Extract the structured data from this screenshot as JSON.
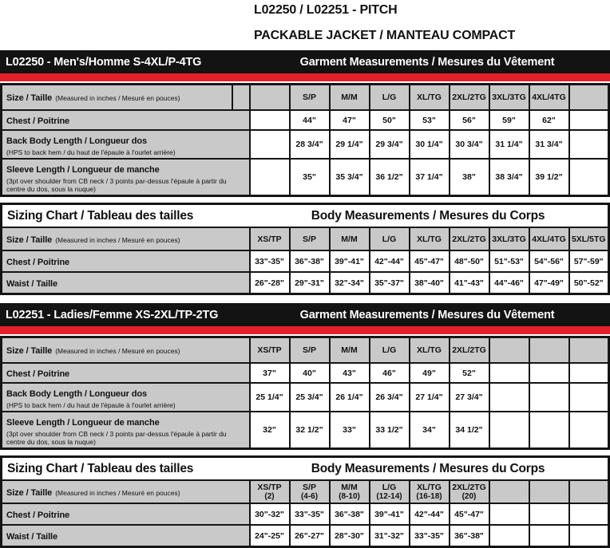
{
  "header": {
    "line1": "L02250 / L02251 - PITCH",
    "line2": "PACKABLE JACKET / MANTEAU COMPACT"
  },
  "colors": {
    "accent_red": "#e4212a",
    "banner_black": "#131313",
    "cell_gray": "#c9c9c9"
  },
  "size_row_label": "Size / Taille",
  "size_row_note": "(Measured in inches / Mesuré en pouces)",
  "sections": [
    {
      "id": "mens",
      "banner": {
        "left": "L02250 - Men's/Homme S-4XL/P-4TG",
        "right": "Garment Measurements / Mesures du Vêtement"
      },
      "garment": {
        "split_label_column": true,
        "sizes": [
          "",
          "S/P",
          "M/M",
          "L/G",
          "XL/TG",
          "2XL/2TG",
          "3XL/3TG",
          "4XL/4TG",
          ""
        ],
        "rows": [
          {
            "label": "Chest / Poitrine",
            "note": "",
            "values": [
              "",
              "44\"",
              "47\"",
              "50\"",
              "53\"",
              "56\"",
              "59\"",
              "62\"",
              ""
            ]
          },
          {
            "label": "Back Body Length / Longueur dos",
            "note": "(HPS to back hem / du haut de l'épaule à l'ourlet arrière)",
            "values": [
              "",
              "28 3/4\"",
              "29 1/4\"",
              "29 3/4\"",
              "30 1/4\"",
              "30 3/4\"",
              "31 1/4\"",
              "31 3/4\"",
              ""
            ]
          },
          {
            "label": "Sleeve Length / Longueur de manche",
            "note": "(3pt over shoulder from CB neck / 3 points par-dessus l'épaule à partir du centre du dos, sous la nuque)",
            "values": [
              "",
              "35\"",
              "35 3/4\"",
              "36 1/2\"",
              "37 1/4\"",
              "38\"",
              "38 3/4\"",
              "39 1/2\"",
              ""
            ]
          }
        ]
      },
      "body": {
        "title_left": "Sizing Chart / Tableau des tailles",
        "title_right": "Body Measurements / Mesures du Corps",
        "sizes": [
          "XS/TP",
          "S/P",
          "M/M",
          "L/G",
          "XL/TG",
          "2XL/2TG",
          "3XL/3TG",
          "4XL/4TG",
          "5XL/5TG"
        ],
        "size_subs": null,
        "rows": [
          {
            "label": "Chest / Poitrine",
            "values": [
              "33\"-35\"",
              "36\"-38\"",
              "39\"-41\"",
              "42\"-44\"",
              "45\"-47\"",
              "48\"-50\"",
              "51\"-53\"",
              "54\"-56\"",
              "57\"-59\""
            ]
          },
          {
            "label": "Waist / Taille",
            "values": [
              "26\"-28\"",
              "29\"-31\"",
              "32\"-34\"",
              "35\"-37\"",
              "38\"-40\"",
              "41\"-43\"",
              "44\"-46\"",
              "47\"-49\"",
              "50\"-52\""
            ]
          }
        ]
      }
    },
    {
      "id": "ladies",
      "banner": {
        "left": "L02251 - Ladies/Femme XS-2XL/TP-2TG",
        "right": "Garment Measurements / Mesures du Vêtement"
      },
      "garment": {
        "split_label_column": false,
        "sizes": [
          "XS/TP",
          "S/P",
          "M/M",
          "L/G",
          "XL/TG",
          "2XL/2TG",
          "",
          "",
          ""
        ],
        "rows": [
          {
            "label": "Chest / Poitrine",
            "note": "",
            "values": [
              "37\"",
              "40\"",
              "43\"",
              "46\"",
              "49\"",
              "52\"",
              "",
              "",
              ""
            ]
          },
          {
            "label": "Back Body Length / Longueur dos",
            "note": "(HPS to back hem / du haut de l'épaule à l'ourlet arrière)",
            "values": [
              "25 1/4\"",
              "25 3/4\"",
              "26 1/4\"",
              "26 3/4\"",
              "27 1/4\"",
              "27 3/4\"",
              "",
              "",
              ""
            ]
          },
          {
            "label": "Sleeve Length / Longueur de manche",
            "note": "(3pt over shoulder from CB neck / 3 points par-dessus l'épaule à partir du centre du dos, sous la nuque)",
            "values": [
              "32\"",
              "32 1/2\"",
              "33\"",
              "33 1/2\"",
              "34\"",
              "34 1/2\"",
              "",
              "",
              ""
            ]
          }
        ]
      },
      "body": {
        "title_left": "Sizing Chart / Tableau des tailles",
        "title_right": "Body Measurements / Mesures du Corps",
        "sizes": [
          "XS/TP",
          "S/P",
          "M/M",
          "L/G",
          "XL/TG",
          "2XL/2TG",
          "",
          "",
          ""
        ],
        "size_subs": [
          "(2)",
          "(4-6)",
          "(8-10)",
          "(12-14)",
          "(16-18)",
          "(20)",
          "",
          "",
          ""
        ],
        "rows": [
          {
            "label": "Chest / Poitrine",
            "values": [
              "30\"-32\"",
              "33\"-35\"",
              "36\"-38\"",
              "39\"-41\"",
              "42\"-44\"",
              "45\"-47\"",
              "",
              "",
              ""
            ]
          },
          {
            "label": "Waist / Taille",
            "values": [
              "24\"-25\"",
              "26\"-27\"",
              "28\"-30\"",
              "31\"-32\"",
              "33\"-35\"",
              "36\"-38\"",
              "",
              "",
              ""
            ]
          }
        ]
      }
    }
  ]
}
